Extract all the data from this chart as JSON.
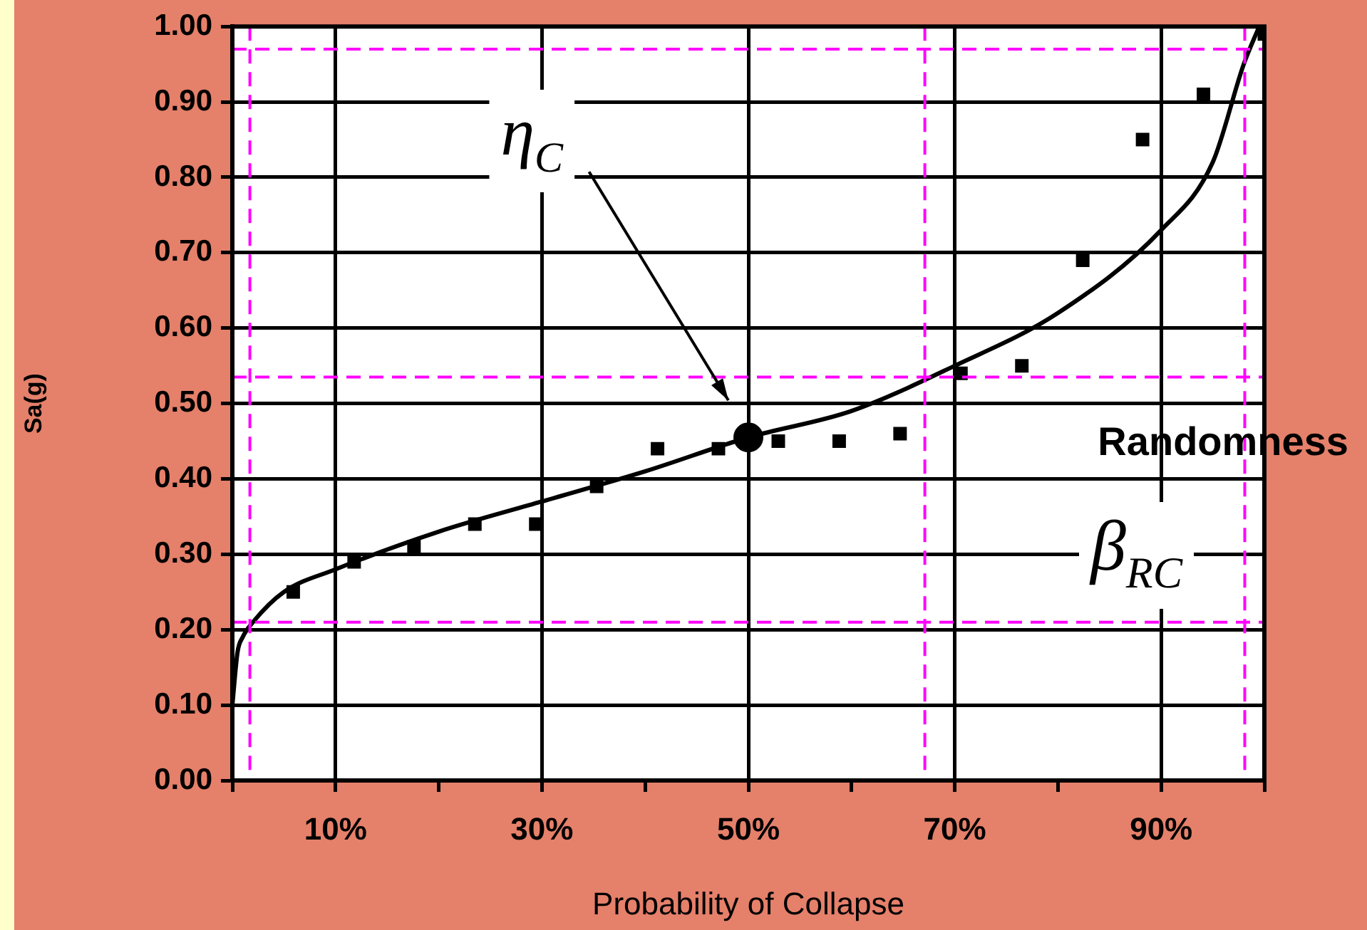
{
  "chart_data": {
    "type": "scatter",
    "xlabel": "Probability of Collapse",
    "ylabel": "Sa(g)",
    "xlim": [
      0,
      100
    ],
    "ylim": [
      0,
      1
    ],
    "xticks": [
      {
        "value": 0,
        "label": null
      },
      {
        "value": 10,
        "label": "10%"
      },
      {
        "value": 20,
        "label": null
      },
      {
        "value": 30,
        "label": "30%"
      },
      {
        "value": 40,
        "label": null
      },
      {
        "value": 50,
        "label": "50%"
      },
      {
        "value": 60,
        "label": null
      },
      {
        "value": 70,
        "label": "70%"
      },
      {
        "value": 80,
        "label": null
      },
      {
        "value": 90,
        "label": "90%"
      },
      {
        "value": 100,
        "label": null
      }
    ],
    "yticks": [
      {
        "value": 0,
        "label": "0.00"
      },
      {
        "value": 0.1,
        "label": "0.10"
      },
      {
        "value": 0.2,
        "label": "0.20"
      },
      {
        "value": 0.3,
        "label": "0.30"
      },
      {
        "value": 0.4,
        "label": "0.40"
      },
      {
        "value": 0.5,
        "label": "0.50"
      },
      {
        "value": 0.6,
        "label": "0.60"
      },
      {
        "value": 0.7,
        "label": "0.70"
      },
      {
        "value": 0.8,
        "label": "0.80"
      },
      {
        "value": 0.9,
        "label": "0.90"
      },
      {
        "value": 1,
        "label": "1.00"
      }
    ],
    "grid": true,
    "legend": false,
    "series": [
      {
        "type": "line",
        "color": "#000000",
        "marker": "none",
        "x": [
          0,
          0.5,
          1,
          2,
          5,
          10,
          20,
          30,
          40,
          50,
          60,
          70,
          80,
          90,
          95,
          98,
          99.5
        ],
        "values": [
          0.1,
          0.17,
          0.19,
          0.21,
          0.25,
          0.28,
          0.33,
          0.37,
          0.41,
          0.455,
          0.49,
          0.55,
          0.62,
          0.73,
          0.82,
          0.95,
          1.0
        ]
      },
      {
        "type": "scatter",
        "color": "#000000",
        "marker": "square",
        "x": [
          5.9,
          11.8,
          17.6,
          23.5,
          29.4,
          35.3,
          41.2,
          47.1,
          52.9,
          58.8,
          64.7,
          70.6,
          76.5,
          82.4,
          88.2,
          94.1,
          100
        ],
        "values": [
          0.25,
          0.29,
          0.31,
          0.34,
          0.34,
          0.39,
          0.44,
          0.44,
          0.45,
          0.45,
          0.46,
          0.54,
          0.55,
          0.69,
          0.85,
          0.91,
          0.99
        ]
      },
      {
        "type": "scatter",
        "color": "#000000",
        "marker": "circle",
        "x": [
          50
        ],
        "values": [
          0.455
        ]
      }
    ],
    "ref_lines": [
      {
        "axis": "y",
        "value": 0.97,
        "color": "#ff00ff",
        "line_style": "dashed"
      },
      {
        "axis": "y",
        "value": 0.535,
        "color": "#ff00ff",
        "line_style": "dashed"
      },
      {
        "axis": "y",
        "value": 0.21,
        "color": "#ff00ff",
        "line_style": "dashed"
      },
      {
        "axis": "x",
        "value": 1.7,
        "color": "#ff00ff",
        "line_style": "dashed"
      },
      {
        "axis": "x",
        "value": 67.1,
        "color": "#ff00ff",
        "line_style": "dashed"
      },
      {
        "axis": "x",
        "value": 98.1,
        "color": "#ff00ff",
        "line_style": "dashed"
      }
    ],
    "annotations": [
      "η$_{C}$",
      "Randomness",
      "β$_{RC}$"
    ]
  }
}
